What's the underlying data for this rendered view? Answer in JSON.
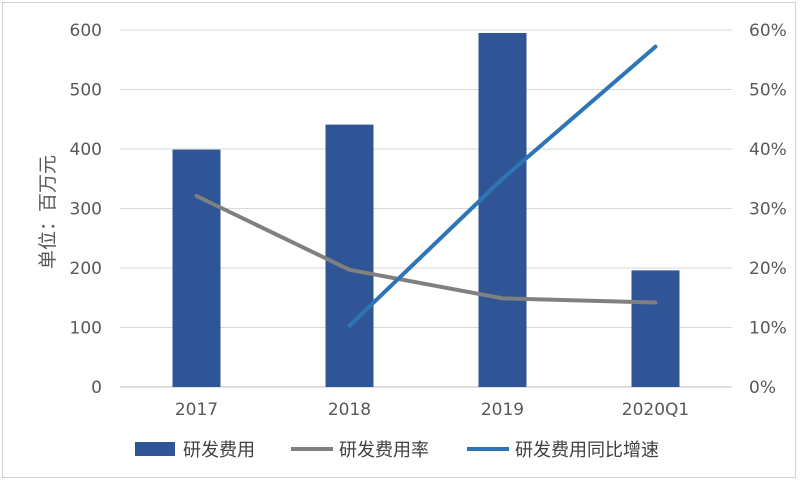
{
  "chart_data": {
    "type": "bar",
    "categories": [
      "2017",
      "2018",
      "2019",
      "2020Q1"
    ],
    "ylabel": "单位：百万元",
    "ylim": [
      0,
      600
    ],
    "y_ticks": [
      "0",
      "100",
      "200",
      "300",
      "400",
      "500",
      "600"
    ],
    "y2lim": [
      0,
      60
    ],
    "y2_ticks": [
      "0%",
      "10%",
      "20%",
      "30%",
      "40%",
      "50%",
      "60%"
    ],
    "grid": true,
    "legend_position": "bottom",
    "series": [
      {
        "name": "研发费用",
        "type": "bar",
        "axis": "left",
        "color": "#2f5597",
        "values": [
          399,
          441,
          595,
          196
        ]
      },
      {
        "name": "研发费用率",
        "type": "line",
        "axis": "right",
        "color": "#808080",
        "values": [
          32.1,
          19.7,
          14.9,
          14.2
        ]
      },
      {
        "name": "研发费用同比增速",
        "type": "line",
        "axis": "right",
        "color": "#2e75b6",
        "values": [
          null,
          10.3,
          35.0,
          57.2
        ]
      }
    ]
  }
}
